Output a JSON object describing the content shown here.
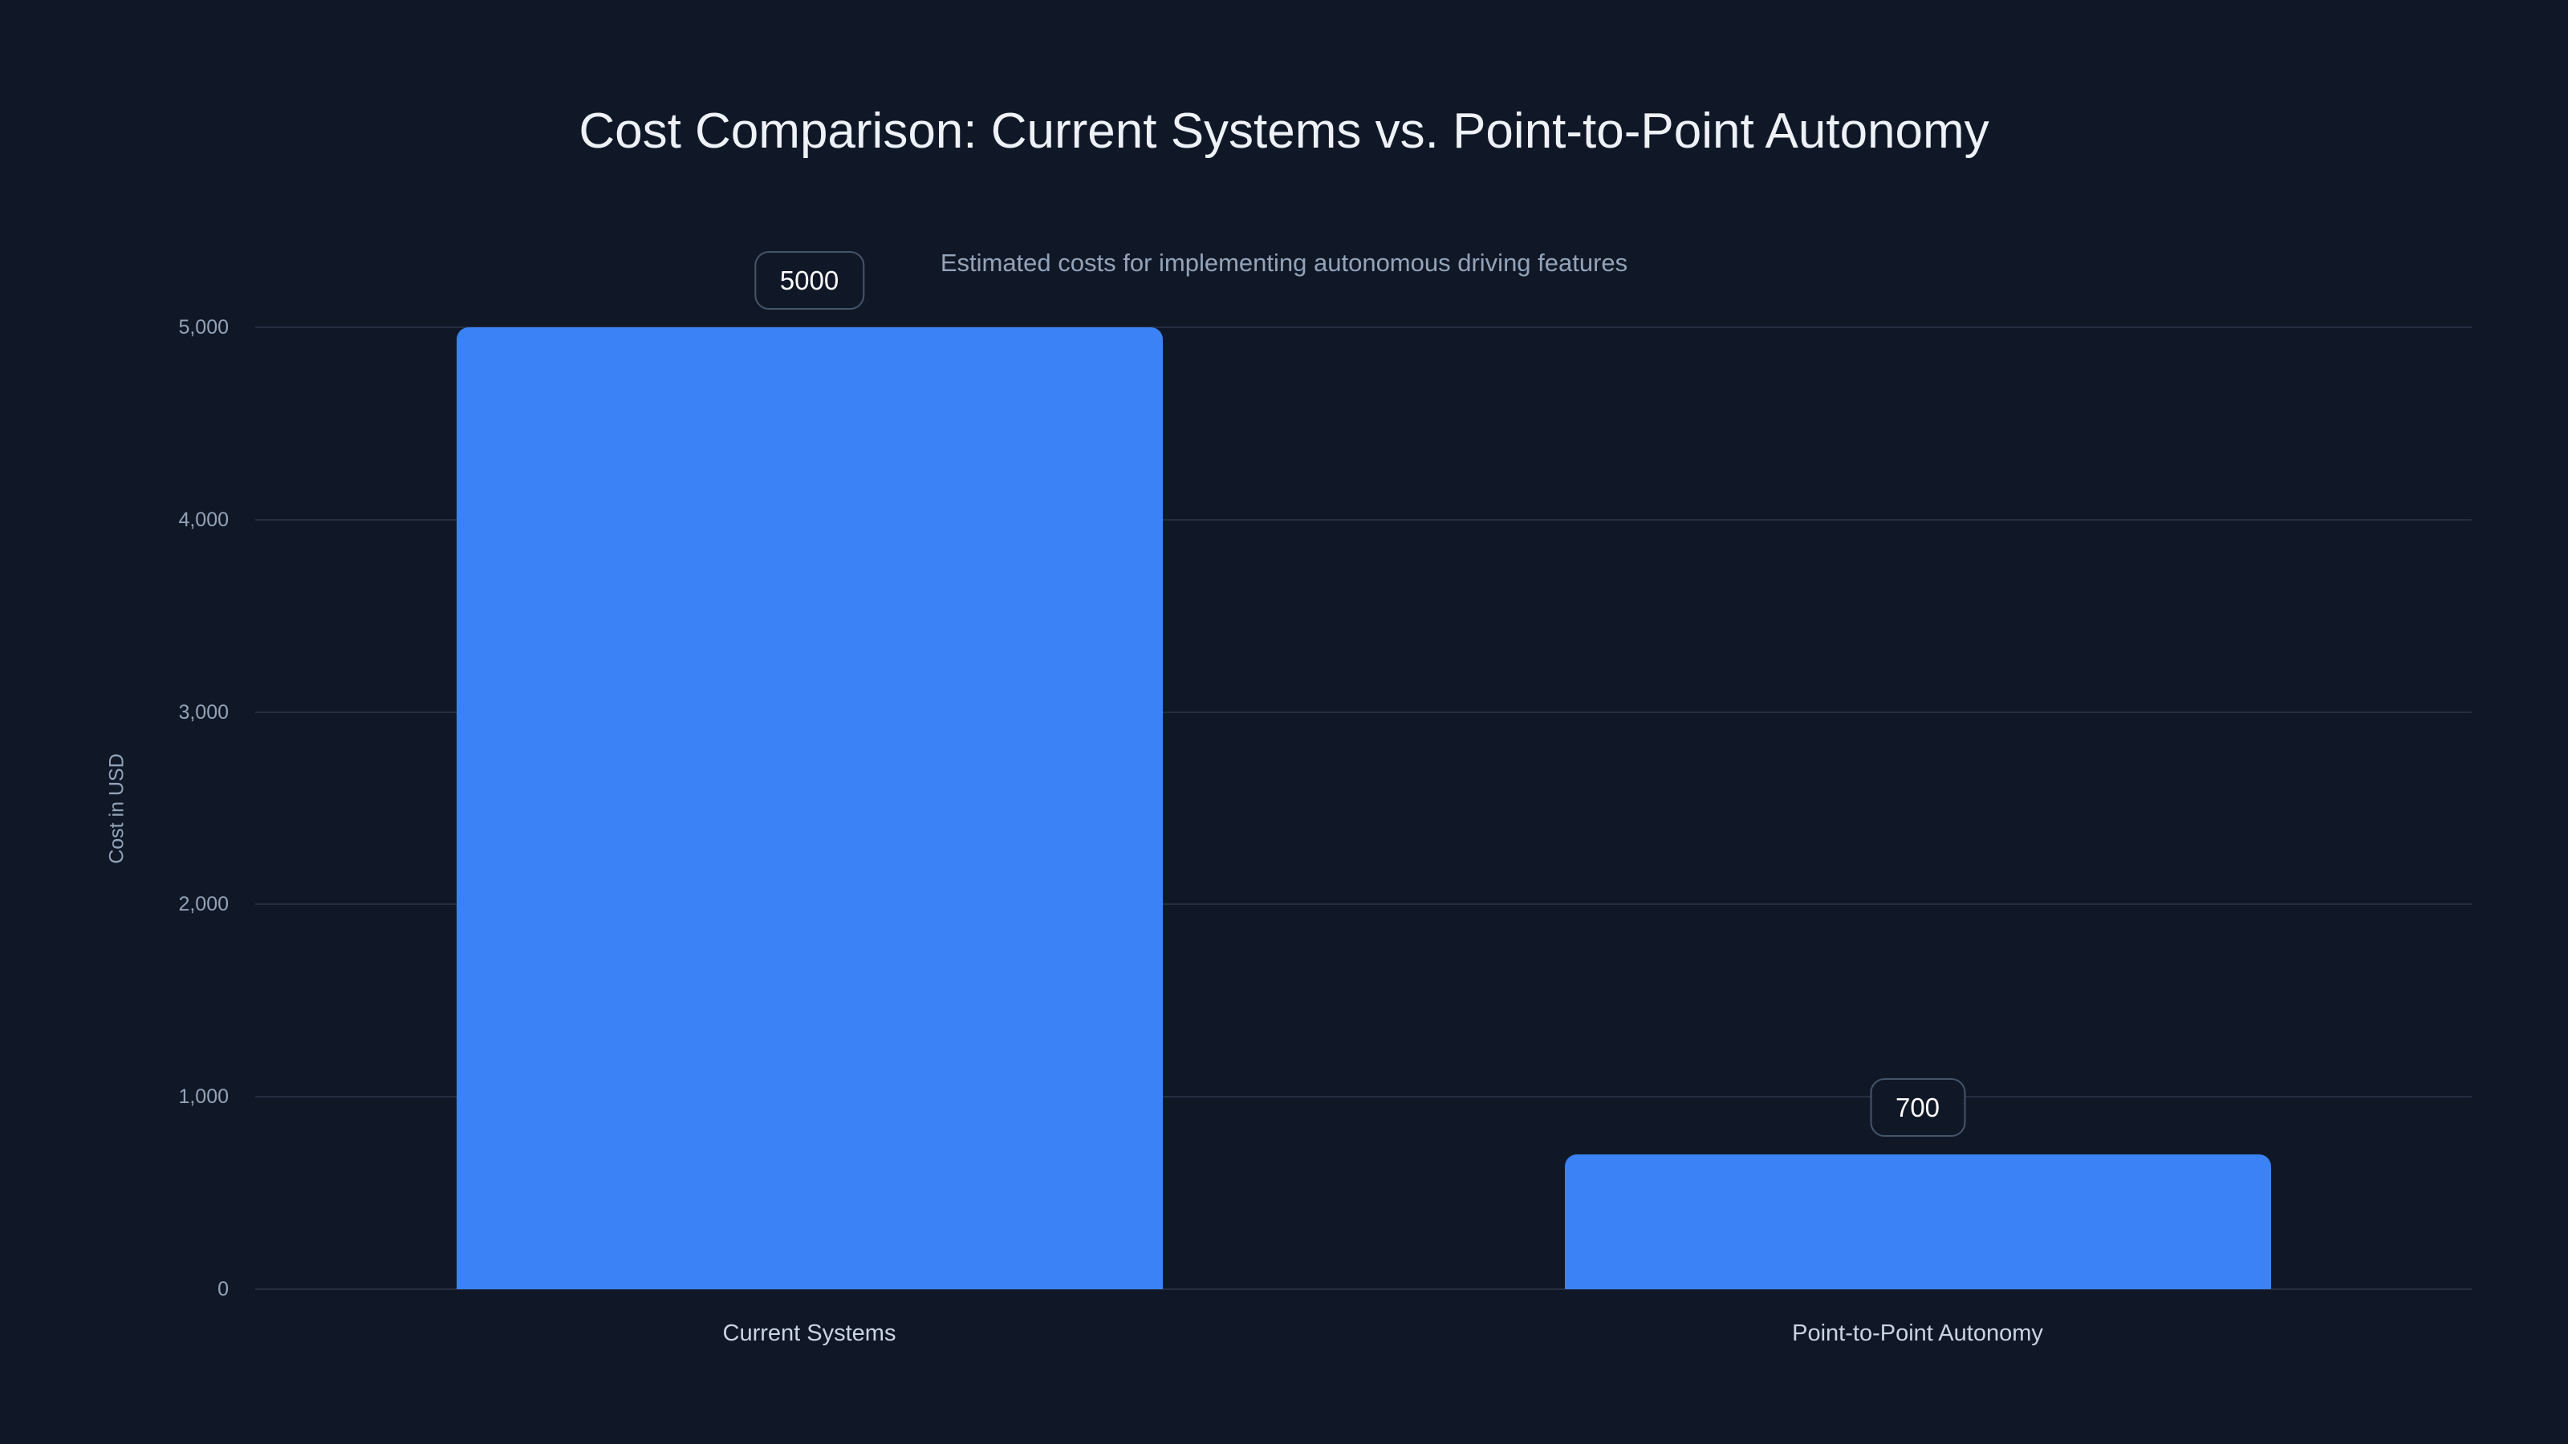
{
  "page": {
    "title": "Cost Comparison: Current Systems vs. Point-to-Point Autonomy",
    "subtitle": "Estimated costs for implementing autonomous driving features"
  },
  "chart_data": {
    "type": "bar",
    "title": "Cost Comparison: Current Systems vs. Point-to-Point Autonomy",
    "subtitle": "Estimated costs for implementing autonomous driving features",
    "categories": [
      "Current Systems",
      "Point-to-Point Autonomy"
    ],
    "values": [
      5000,
      700
    ],
    "data_labels": [
      "5000",
      "700"
    ],
    "xlabel": "",
    "ylabel": "Cost in USD",
    "ylim": [
      0,
      5000
    ],
    "ytick_step": 1000,
    "ytick_labels": [
      "0",
      "1,000",
      "2,000",
      "3,000",
      "4,000",
      "5,000"
    ],
    "grid": true,
    "legend": "none",
    "bar_color": "#3b82f6"
  },
  "colors": {
    "background": "#101828",
    "bar": "#3b82f6",
    "title": "#eef2f7",
    "subtitle": "#94a3b8",
    "axis_tick": "#94a3b8",
    "axis_name": "#94a3b8",
    "category_label": "#cbd5e1",
    "gridline": "#252e40",
    "badge_border": "#475569",
    "badge_text": "#ffffff"
  }
}
